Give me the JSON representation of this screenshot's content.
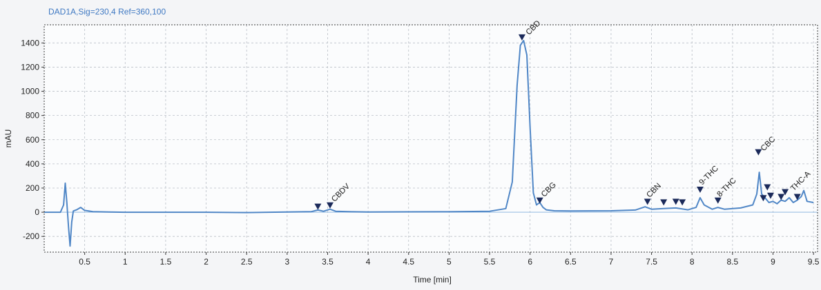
{
  "chart_data": {
    "type": "line",
    "title": "DAD1A,Sig=230,4  Ref=360,100",
    "xlabel": "Time [min]",
    "ylabel": "mAU",
    "xlim": [
      0.0,
      9.55
    ],
    "ylim": [
      -330,
      1550
    ],
    "x_ticks": [
      0.5,
      1,
      1.5,
      2,
      2.5,
      3,
      3.5,
      4,
      4.5,
      5,
      5.5,
      6,
      6.5,
      7,
      7.5,
      8,
      8.5,
      9,
      9.5
    ],
    "x_tick_labels": [
      "0.5",
      "1",
      "1.5",
      "2",
      "2.5",
      "3",
      "3.5",
      "4",
      "4.5",
      "5",
      "5.5",
      "6",
      "6.5",
      "7",
      "7.5",
      "8",
      "8.5",
      "9",
      "9.5"
    ],
    "y_ticks": [
      -200,
      0,
      200,
      400,
      600,
      800,
      1000,
      1200,
      1400
    ],
    "y_tick_labels": [
      "-200",
      "0",
      "200",
      "400",
      "600",
      "800",
      "1000",
      "1200",
      "1400"
    ],
    "grid": true,
    "series": [
      {
        "color": "#4f86c6",
        "x": [
          0.0,
          0.2,
          0.24,
          0.26,
          0.28,
          0.3,
          0.32,
          0.34,
          0.36,
          0.4,
          0.45,
          0.5,
          0.6,
          0.8,
          1.0,
          1.5,
          2.0,
          2.5,
          3.0,
          3.3,
          3.38,
          3.45,
          3.53,
          3.6,
          3.8,
          4.0,
          4.5,
          5.0,
          5.5,
          5.7,
          5.78,
          5.84,
          5.88,
          5.92,
          5.96,
          6.0,
          6.04,
          6.08,
          6.12,
          6.16,
          6.2,
          6.3,
          6.5,
          7.0,
          7.3,
          7.42,
          7.5,
          7.65,
          7.8,
          7.95,
          8.05,
          8.1,
          8.15,
          8.25,
          8.32,
          8.4,
          8.6,
          8.75,
          8.8,
          8.83,
          8.86,
          8.9,
          8.95,
          9.0,
          9.05,
          9.1,
          9.15,
          9.2,
          9.25,
          9.3,
          9.35,
          9.38,
          9.42,
          9.5
        ],
        "y": [
          0,
          0,
          60,
          240,
          80,
          -120,
          -280,
          -80,
          10,
          20,
          40,
          15,
          5,
          2,
          0,
          0,
          0,
          -3,
          2,
          5,
          18,
          8,
          25,
          8,
          4,
          2,
          3,
          4,
          8,
          30,
          250,
          1050,
          1380,
          1420,
          1300,
          700,
          160,
          60,
          80,
          40,
          20,
          12,
          10,
          12,
          18,
          45,
          25,
          30,
          35,
          20,
          40,
          120,
          60,
          25,
          40,
          25,
          35,
          60,
          150,
          330,
          150,
          120,
          80,
          90,
          70,
          100,
          90,
          120,
          80,
          100,
          130,
          180,
          90,
          80
        ]
      }
    ],
    "markers": [
      {
        "x": 3.38,
        "y": 20
      },
      {
        "x": 3.53,
        "y": 30
      },
      {
        "x": 5.9,
        "y": 1420
      },
      {
        "x": 6.12,
        "y": 70
      },
      {
        "x": 7.45,
        "y": 60
      },
      {
        "x": 7.65,
        "y": 55
      },
      {
        "x": 7.8,
        "y": 60
      },
      {
        "x": 7.88,
        "y": 55
      },
      {
        "x": 8.1,
        "y": 160
      },
      {
        "x": 8.32,
        "y": 70
      },
      {
        "x": 8.82,
        "y": 470
      },
      {
        "x": 8.88,
        "y": 90
      },
      {
        "x": 8.93,
        "y": 180
      },
      {
        "x": 8.97,
        "y": 110
      },
      {
        "x": 9.1,
        "y": 100
      },
      {
        "x": 9.15,
        "y": 140
      },
      {
        "x": 9.3,
        "y": 100
      }
    ],
    "annotations": [
      {
        "text": "CBDV",
        "x": 3.56,
        "y": 60
      },
      {
        "text": "CBD",
        "x": 5.96,
        "y": 1440
      },
      {
        "text": "CBG",
        "x": 6.15,
        "y": 100
      },
      {
        "text": "CBN",
        "x": 7.45,
        "y": 95
      },
      {
        "text": "9-THC",
        "x": 8.1,
        "y": 200
      },
      {
        "text": "8-THC",
        "x": 8.32,
        "y": 100
      },
      {
        "text": "CBC",
        "x": 8.86,
        "y": 480
      },
      {
        "text": "THC-A",
        "x": 9.23,
        "y": 150
      }
    ]
  }
}
